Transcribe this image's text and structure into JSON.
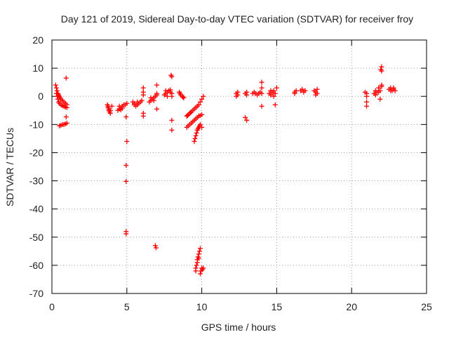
{
  "chart_data": {
    "type": "scatter",
    "title": "Day 121 of 2019, Sidereal Day-to-day VTEC variation (SDTVAR) for receiver froy",
    "xlabel": "GPS time / hours",
    "ylabel": "SDTVAR / TECUs",
    "xlim": [
      0,
      25
    ],
    "ylim": [
      -70,
      20
    ],
    "xticks": [
      0,
      5,
      10,
      15,
      20,
      25
    ],
    "yticks": [
      -70,
      -60,
      -50,
      -40,
      -30,
      -20,
      -10,
      0,
      10,
      20
    ],
    "grid": true,
    "marker": "+",
    "color": "#ff0000",
    "series": [
      {
        "name": "SDTVAR",
        "points": [
          [
            0.25,
            4
          ],
          [
            0.3,
            3
          ],
          [
            0.35,
            2
          ],
          [
            0.4,
            1
          ],
          [
            0.45,
            0.5
          ],
          [
            0.5,
            0
          ],
          [
            0.55,
            -0.5
          ],
          [
            0.6,
            -1
          ],
          [
            0.7,
            -1.5
          ],
          [
            0.8,
            -2
          ],
          [
            0.9,
            -2.5
          ],
          [
            1.0,
            -3
          ],
          [
            0.3,
            1
          ],
          [
            0.35,
            0
          ],
          [
            0.4,
            -1
          ],
          [
            0.45,
            -2
          ],
          [
            0.5,
            -2.5
          ],
          [
            0.6,
            -3
          ],
          [
            0.7,
            -3.3
          ],
          [
            0.8,
            -3.6
          ],
          [
            0.9,
            -3.8
          ],
          [
            1.0,
            -4
          ],
          [
            0.5,
            -10.5
          ],
          [
            0.6,
            -10.3
          ],
          [
            0.7,
            -10
          ],
          [
            0.8,
            -10
          ],
          [
            0.9,
            -9.8
          ],
          [
            1.0,
            -9.5
          ],
          [
            0.95,
            -7.3
          ],
          [
            0.95,
            6.5
          ],
          [
            3.7,
            -3
          ],
          [
            3.75,
            -4
          ],
          [
            3.8,
            -5
          ],
          [
            3.85,
            -5.5
          ],
          [
            3.9,
            -6
          ],
          [
            3.75,
            -3.5
          ],
          [
            3.8,
            -4.5
          ],
          [
            3.9,
            -5
          ],
          [
            4.0,
            -3.5
          ],
          [
            4.4,
            -5
          ],
          [
            4.5,
            -4.5
          ],
          [
            4.6,
            -4
          ],
          [
            4.7,
            -3.5
          ],
          [
            4.8,
            -3
          ],
          [
            4.9,
            -3
          ],
          [
            5.0,
            -2.5
          ],
          [
            4.5,
            -3.5
          ],
          [
            4.6,
            -4.8
          ],
          [
            4.7,
            -4.2
          ],
          [
            4.95,
            -7.3
          ],
          [
            5.0,
            -16
          ],
          [
            4.95,
            -24.5
          ],
          [
            4.95,
            -30.2
          ],
          [
            4.95,
            -48
          ],
          [
            4.95,
            -48.8
          ],
          [
            5.4,
            -2
          ],
          [
            5.5,
            -3
          ],
          [
            5.6,
            -3.5
          ],
          [
            5.7,
            -3
          ],
          [
            5.8,
            -2.5
          ],
          [
            5.9,
            -2
          ],
          [
            6.0,
            -1.5
          ],
          [
            5.5,
            -2.5
          ],
          [
            5.7,
            -2
          ],
          [
            6.1,
            3
          ],
          [
            6.1,
            1.5
          ],
          [
            6.1,
            0.5
          ],
          [
            6.1,
            -6
          ],
          [
            6.1,
            -7
          ],
          [
            6.5,
            -2
          ],
          [
            6.6,
            -1.5
          ],
          [
            6.7,
            -1
          ],
          [
            6.8,
            -0.5
          ],
          [
            6.9,
            0
          ],
          [
            7.0,
            0.5
          ],
          [
            6.6,
            -0.5
          ],
          [
            6.8,
            -1.5
          ],
          [
            7.0,
            1
          ],
          [
            7.0,
            -4.5
          ],
          [
            7.0,
            4
          ],
          [
            6.9,
            -53
          ],
          [
            6.95,
            -53.8
          ],
          [
            7.5,
            0.5
          ],
          [
            7.6,
            1
          ],
          [
            7.7,
            1.5
          ],
          [
            7.8,
            2
          ],
          [
            7.9,
            1.5
          ],
          [
            8.0,
            1
          ],
          [
            7.6,
            2
          ],
          [
            7.7,
            0
          ],
          [
            7.9,
            2.3
          ],
          [
            8.0,
            0
          ],
          [
            7.95,
            7.5
          ],
          [
            8.0,
            7
          ],
          [
            8.0,
            -8.5
          ],
          [
            8.0,
            -12
          ],
          [
            8.5,
            1.5
          ],
          [
            8.6,
            0.5
          ],
          [
            8.7,
            0
          ],
          [
            8.8,
            -0.5
          ],
          [
            8.55,
            1
          ],
          [
            8.75,
            -0.3
          ],
          [
            9.0,
            -7
          ],
          [
            9.1,
            -6.5
          ],
          [
            9.2,
            -6
          ],
          [
            9.3,
            -5.5
          ],
          [
            9.4,
            -5
          ],
          [
            9.5,
            -4.5
          ],
          [
            9.05,
            -6.8
          ],
          [
            9.25,
            -5.8
          ],
          [
            9.0,
            -11
          ],
          [
            9.1,
            -10.5
          ],
          [
            9.2,
            -10
          ],
          [
            9.3,
            -9.5
          ],
          [
            9.4,
            -9
          ],
          [
            9.5,
            -8.5
          ],
          [
            9.6,
            -8
          ],
          [
            9.7,
            -7.5
          ],
          [
            9.8,
            -7
          ],
          [
            9.9,
            -6.8
          ],
          [
            10.0,
            -6.5
          ],
          [
            9.5,
            -16
          ],
          [
            9.55,
            -15
          ],
          [
            9.6,
            -14
          ],
          [
            9.65,
            -13
          ],
          [
            9.7,
            -12
          ],
          [
            9.75,
            -11.5
          ],
          [
            9.8,
            -11
          ],
          [
            9.85,
            -10.5
          ],
          [
            9.9,
            -10
          ],
          [
            10.0,
            -11
          ],
          [
            9.6,
            -4
          ],
          [
            9.7,
            -3.5
          ],
          [
            9.8,
            -3
          ],
          [
            9.9,
            -2
          ],
          [
            10.0,
            -1
          ],
          [
            10.1,
            0
          ],
          [
            9.6,
            -62
          ],
          [
            9.65,
            -60
          ],
          [
            9.7,
            -58
          ],
          [
            9.75,
            -57
          ],
          [
            9.8,
            -56
          ],
          [
            9.85,
            -55
          ],
          [
            9.9,
            -54
          ],
          [
            9.6,
            -61
          ],
          [
            9.7,
            -59
          ],
          [
            9.8,
            -57.5
          ],
          [
            9.9,
            -63
          ],
          [
            9.95,
            -62
          ],
          [
            10.0,
            -61
          ],
          [
            10.05,
            -61.5
          ],
          [
            10.1,
            -61
          ],
          [
            12.3,
            1
          ],
          [
            12.4,
            0.5
          ],
          [
            12.3,
            0
          ],
          [
            12.4,
            1.5
          ],
          [
            12.9,
            1
          ],
          [
            13.0,
            0.5
          ],
          [
            13.0,
            1.5
          ],
          [
            12.9,
            -7.5
          ],
          [
            13.0,
            -8.5
          ],
          [
            13.4,
            1
          ],
          [
            13.5,
            1.5
          ],
          [
            13.6,
            1
          ],
          [
            13.7,
            0.5
          ],
          [
            13.8,
            1
          ],
          [
            13.9,
            1.5
          ],
          [
            14.0,
            1
          ],
          [
            14.0,
            5
          ],
          [
            14.0,
            3
          ],
          [
            14.0,
            -3.5
          ],
          [
            14.5,
            1
          ],
          [
            14.6,
            0.5
          ],
          [
            14.7,
            1.5
          ],
          [
            14.8,
            2
          ],
          [
            14.9,
            1
          ],
          [
            14.6,
            2
          ],
          [
            14.8,
            0
          ],
          [
            15.0,
            3
          ],
          [
            14.9,
            -3
          ],
          [
            16.2,
            1.5
          ],
          [
            16.3,
            2
          ],
          [
            16.2,
            1
          ],
          [
            16.6,
            2
          ],
          [
            16.7,
            2.5
          ],
          [
            16.8,
            1.5
          ],
          [
            16.9,
            2
          ],
          [
            17.5,
            2
          ],
          [
            17.6,
            1.5
          ],
          [
            17.7,
            2.5
          ],
          [
            17.6,
            0.5
          ],
          [
            17.7,
            1
          ],
          [
            20.9,
            1.5
          ],
          [
            21.0,
            1
          ],
          [
            21.0,
            0
          ],
          [
            21.0,
            -2
          ],
          [
            21.0,
            -3.5
          ],
          [
            21.5,
            1
          ],
          [
            21.6,
            2
          ],
          [
            21.7,
            1.5
          ],
          [
            21.8,
            3
          ],
          [
            21.9,
            2
          ],
          [
            22.0,
            3.5
          ],
          [
            21.6,
            0.5
          ],
          [
            21.8,
            1.5
          ],
          [
            22.0,
            4
          ],
          [
            21.9,
            -1
          ],
          [
            21.95,
            9.5
          ],
          [
            22.0,
            10.5
          ],
          [
            22.0,
            9
          ],
          [
            22.5,
            2.5
          ],
          [
            22.6,
            3
          ],
          [
            22.7,
            2
          ],
          [
            22.8,
            2.5
          ],
          [
            22.9,
            2
          ],
          [
            22.6,
            2
          ],
          [
            22.8,
            3
          ]
        ]
      }
    ]
  }
}
